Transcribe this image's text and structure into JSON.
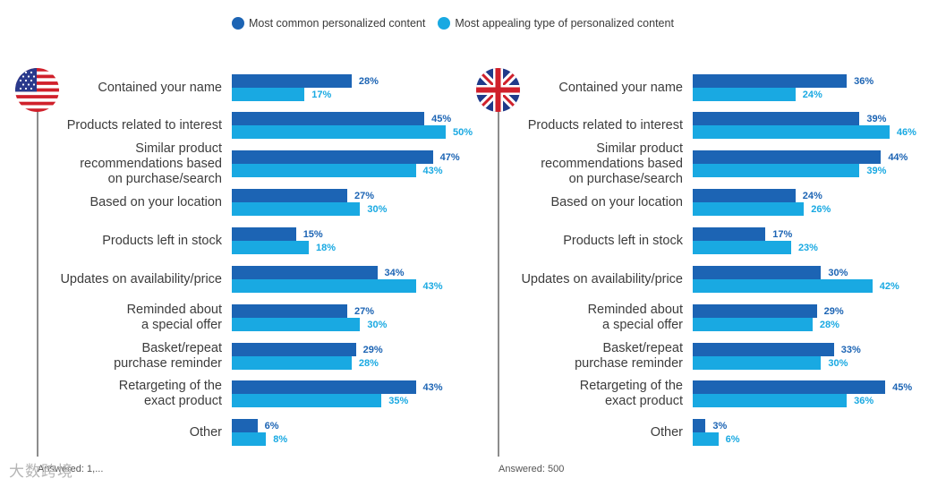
{
  "legend": {
    "common": "Most common personalized content",
    "appealing": "Most appealing type of personalized content"
  },
  "colors": {
    "common": "#1c64b4",
    "appealing": "#19a9e2"
  },
  "footer": {
    "us_answered": "Answered: 1,...",
    "uk_answered": "Answered: 500",
    "watermark": "大数跨境"
  },
  "chart_data": [
    {
      "type": "bar",
      "title": "US",
      "categories": [
        "Contained your name",
        "Products related to interest",
        "Similar product\nrecommendations based\non purchase/search",
        "Based on your location",
        "Products left in stock",
        "Updates on availability/price",
        "Reminded about\na special offer",
        "Basket/repeat\npurchase reminder",
        "Retargeting of the\nexact product",
        "Other"
      ],
      "series": [
        {
          "name": "Most common personalized content",
          "values": [
            28,
            45,
            47,
            27,
            15,
            34,
            27,
            29,
            43,
            6
          ],
          "labels": [
            "28%",
            "45%",
            "47%",
            "27%",
            "15%",
            "34%",
            "27%",
            "29%",
            "43%",
            "6%"
          ]
        },
        {
          "name": "Most appealing type of personalized content",
          "values": [
            17,
            50,
            43,
            30,
            18,
            43,
            30,
            28,
            35,
            8
          ],
          "labels": [
            "17%",
            "50%",
            "43%",
            "30%",
            "18%",
            "43%",
            "30%",
            "28%",
            "35%",
            "8%"
          ]
        }
      ],
      "xlim": [
        0,
        100
      ]
    },
    {
      "type": "bar",
      "title": "UK",
      "categories": [
        "Contained your name",
        "Products related to interest",
        "Similar product\nrecommendations based\non purchase/search",
        "Based on your location",
        "Products left in stock",
        "Updates on availability/price",
        "Reminded about\na special offer",
        "Basket/repeat\npurchase reminder",
        "Retargeting of the\nexact product",
        "Other"
      ],
      "series": [
        {
          "name": "Most common personalized content",
          "values": [
            36,
            39,
            44,
            24,
            17,
            30,
            29,
            33,
            45,
            3
          ],
          "labels": [
            "36%",
            "39%",
            "44%",
            "24%",
            "17%",
            "30%",
            "29%",
            "33%",
            "45%",
            "3%"
          ]
        },
        {
          "name": "Most appealing type of personalized content",
          "values": [
            24,
            46,
            39,
            26,
            23,
            42,
            28,
            30,
            36,
            6
          ],
          "labels": [
            "24%",
            "46%",
            "39%",
            "26%",
            "23%",
            "42%",
            "28%",
            "30%",
            "36%",
            "6%"
          ]
        }
      ],
      "xlim": [
        0,
        100
      ]
    }
  ]
}
